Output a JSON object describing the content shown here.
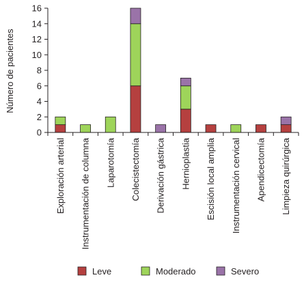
{
  "chart_data": {
    "type": "bar",
    "stacked": true,
    "title": "",
    "xlabel": "",
    "ylabel": "Número de pacientes",
    "ylim": [
      0,
      16
    ],
    "yticks": [
      0,
      2,
      4,
      6,
      8,
      10,
      12,
      14,
      16
    ],
    "grid": false,
    "legend_position": "bottom",
    "categories": [
      "Exploración arterial",
      "Instrumentación de columna",
      "Laparotomía",
      "Colecistectomía",
      "Derivación gástrica",
      "Hernioplastia",
      "Escisión local amplia",
      "Instrumentación cervical",
      "Apendicectomía",
      "Limpieza quirúrgica"
    ],
    "series": [
      {
        "name": "Leve",
        "color": "#b5403f",
        "values": [
          1,
          0,
          0,
          6,
          0,
          3,
          1,
          0,
          1,
          1
        ]
      },
      {
        "name": "Moderado",
        "color": "#9ed45a",
        "values": [
          1,
          1,
          2,
          8,
          0,
          3,
          0,
          1,
          0,
          0
        ]
      },
      {
        "name": "Severo",
        "color": "#9a73a8",
        "values": [
          0,
          0,
          0,
          2,
          1,
          1,
          0,
          0,
          0,
          1
        ]
      }
    ]
  }
}
